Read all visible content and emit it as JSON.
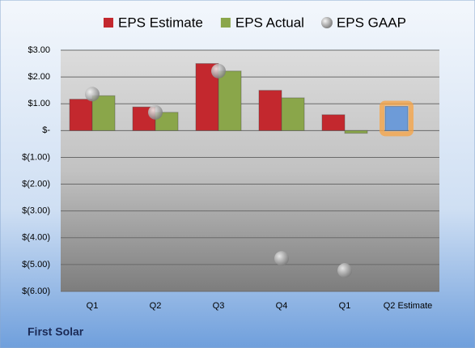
{
  "chart_data": {
    "type": "bar",
    "title": "First Solar",
    "categories": [
      "Q1",
      "Q2",
      "Q3",
      "Q4",
      "Q1",
      "Q2 Estimate"
    ],
    "series": [
      {
        "name": "EPS Estimate",
        "color": "#c3282e",
        "values": [
          1.17,
          0.88,
          2.5,
          1.5,
          0.59,
          0.9
        ],
        "point_colors": [
          "#c3282e",
          "#c3282e",
          "#c3282e",
          "#c3282e",
          "#c3282e",
          "#6d9bd8"
        ],
        "point_glow": [
          null,
          null,
          null,
          null,
          null,
          "#f5a54a"
        ]
      },
      {
        "name": "EPS Actual",
        "color": "#8aa64a",
        "values": [
          1.3,
          0.68,
          2.22,
          1.22,
          -0.1,
          null
        ]
      },
      {
        "name": "EPS GAAP",
        "color": "#a8a8a8",
        "marker": "circle",
        "values": [
          1.36,
          0.68,
          2.22,
          -4.77,
          -5.22,
          null
        ]
      }
    ],
    "ylim": [
      -6,
      3
    ],
    "yticks": [
      {
        "value": 3,
        "label": "$3.00"
      },
      {
        "value": 2,
        "label": "$2.00"
      },
      {
        "value": 1,
        "label": "$1.00"
      },
      {
        "value": 0,
        "label": "$-"
      },
      {
        "value": -1,
        "label": "$(1.00)"
      },
      {
        "value": -2,
        "label": "$(2.00)"
      },
      {
        "value": -3,
        "label": "$(3.00)"
      },
      {
        "value": -4,
        "label": "$(4.00)"
      },
      {
        "value": -5,
        "label": "$(5.00)"
      },
      {
        "value": -6,
        "label": "$(6.00)"
      }
    ],
    "grid": true,
    "legend": "top"
  }
}
